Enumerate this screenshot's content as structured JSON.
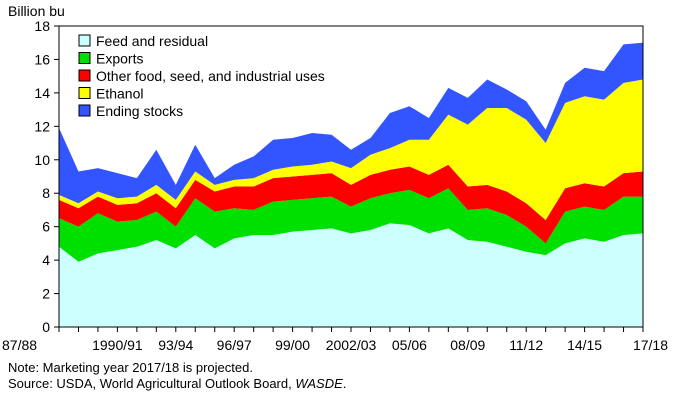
{
  "chart_data": {
    "type": "area",
    "stacked": true,
    "ylabel": "Billion bu",
    "ylim": [
      0,
      18
    ],
    "yticks": [
      0,
      2,
      4,
      6,
      8,
      10,
      12,
      14,
      16,
      18
    ],
    "grid": false,
    "legend_position": "top-left",
    "x": [
      "87/88",
      "88/89",
      "89/90",
      "1990/91",
      "91/92",
      "92/93",
      "93/94",
      "94/95",
      "95/96",
      "96/97",
      "97/98",
      "98/99",
      "99/00",
      "00/01",
      "01/02",
      "2002/03",
      "03/04",
      "04/05",
      "05/06",
      "06/07",
      "07/08",
      "08/09",
      "09/10",
      "10/11",
      "11/12",
      "12/13",
      "13/14",
      "14/15",
      "15/16",
      "16/17",
      "17/18"
    ],
    "xtick_labels": [
      {
        "index": 0,
        "label": "87/88"
      },
      {
        "index": 3,
        "label": "1990/91"
      },
      {
        "index": 6,
        "label": "93/94"
      },
      {
        "index": 9,
        "label": "96/97"
      },
      {
        "index": 12,
        "label": "99/00"
      },
      {
        "index": 15,
        "label": "2002/03"
      },
      {
        "index": 18,
        "label": "05/06"
      },
      {
        "index": 21,
        "label": "08/09"
      },
      {
        "index": 24,
        "label": "11/12"
      },
      {
        "index": 27,
        "label": "14/15"
      },
      {
        "index": 30,
        "label": "17/18"
      }
    ],
    "series": [
      {
        "name": "Feed and residual",
        "color": "#ccffff",
        "values": [
          4.8,
          3.9,
          4.4,
          4.6,
          4.8,
          5.2,
          4.7,
          5.5,
          4.7,
          5.3,
          5.5,
          5.5,
          5.7,
          5.8,
          5.9,
          5.6,
          5.8,
          6.2,
          6.1,
          5.6,
          5.9,
          5.2,
          5.1,
          4.8,
          4.5,
          4.3,
          5.0,
          5.3,
          5.1,
          5.5,
          5.6
        ]
      },
      {
        "name": "Exports",
        "color": "#00e000",
        "values": [
          1.7,
          2.1,
          2.4,
          1.7,
          1.6,
          1.7,
          1.3,
          2.2,
          2.2,
          1.8,
          1.5,
          2.0,
          1.9,
          1.9,
          1.9,
          1.6,
          1.9,
          1.8,
          2.1,
          2.1,
          2.4,
          1.8,
          2.0,
          1.9,
          1.5,
          0.7,
          1.9,
          1.9,
          1.9,
          2.3,
          2.2
        ]
      },
      {
        "name": "Other food, seed, and industrial uses",
        "color": "#ff0000",
        "values": [
          1.1,
          1.1,
          1.0,
          1.0,
          1.0,
          1.1,
          1.1,
          1.1,
          1.2,
          1.3,
          1.4,
          1.4,
          1.4,
          1.4,
          1.4,
          1.3,
          1.4,
          1.4,
          1.4,
          1.4,
          1.4,
          1.4,
          1.4,
          1.4,
          1.4,
          1.4,
          1.4,
          1.4,
          1.4,
          1.4,
          1.5
        ]
      },
      {
        "name": "Ethanol",
        "color": "#ffff00",
        "values": [
          0.3,
          0.3,
          0.3,
          0.4,
          0.4,
          0.5,
          0.5,
          0.5,
          0.4,
          0.4,
          0.5,
          0.5,
          0.6,
          0.6,
          0.7,
          1.0,
          1.2,
          1.3,
          1.6,
          2.1,
          3.0,
          3.7,
          4.6,
          5.0,
          5.0,
          4.6,
          5.1,
          5.2,
          5.2,
          5.4,
          5.5
        ]
      },
      {
        "name": "Ending stocks",
        "color": "#3355ff",
        "values": [
          4.0,
          1.9,
          1.4,
          1.5,
          1.1,
          2.1,
          0.9,
          1.6,
          0.4,
          0.9,
          1.3,
          1.8,
          1.7,
          1.9,
          1.6,
          1.1,
          1.0,
          2.1,
          2.0,
          1.3,
          1.6,
          1.6,
          1.7,
          1.1,
          1.1,
          0.8,
          1.2,
          1.7,
          1.7,
          2.3,
          2.2
        ]
      }
    ]
  },
  "notes": {
    "line1": "Note: Marketing year 2017/18 is projected.",
    "line2_prefix": "Source:  USDA, World Agricultural Outlook Board, ",
    "line2_italic": "WASDE",
    "line2_suffix": "."
  }
}
